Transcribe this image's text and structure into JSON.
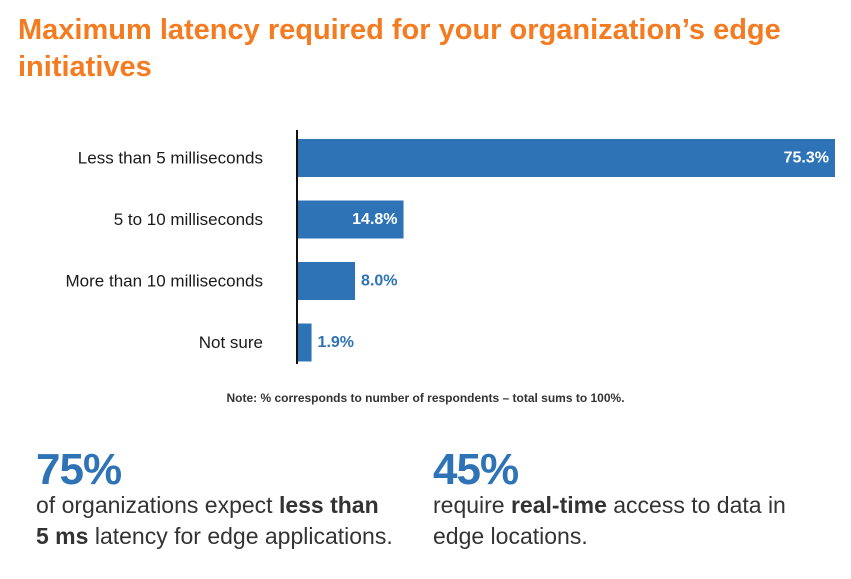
{
  "colors": {
    "accent": "#f47b20",
    "bar": "#2f73b7",
    "label_inside": "#ffffff",
    "text": "#1a1a1a",
    "axis": "#111111"
  },
  "chart_data": {
    "type": "bar",
    "orientation": "horizontal",
    "title": "Maximum latency required for your organization’s edge initiatives",
    "categories": [
      "Less than 5 milliseconds",
      "5 to 10 milliseconds",
      "More than 10 milliseconds",
      "Not sure"
    ],
    "values": [
      75.3,
      14.8,
      8.0,
      1.9
    ],
    "value_labels": [
      "75.3%",
      "14.8%",
      "8.0%",
      "1.9%"
    ],
    "xlim": [
      0,
      75.3
    ],
    "grid": false,
    "legend": "none"
  },
  "note": "Note: % corresponds to number of respondents – total sums to 100%.",
  "stats": [
    {
      "value": "75%",
      "pre": "of organizations expect ",
      "bold": "less than 5 ms",
      "post": " latency for edge applications."
    },
    {
      "value": "45%",
      "pre": "require ",
      "bold": "real-time",
      "post": " access to data in edge locations."
    }
  ]
}
